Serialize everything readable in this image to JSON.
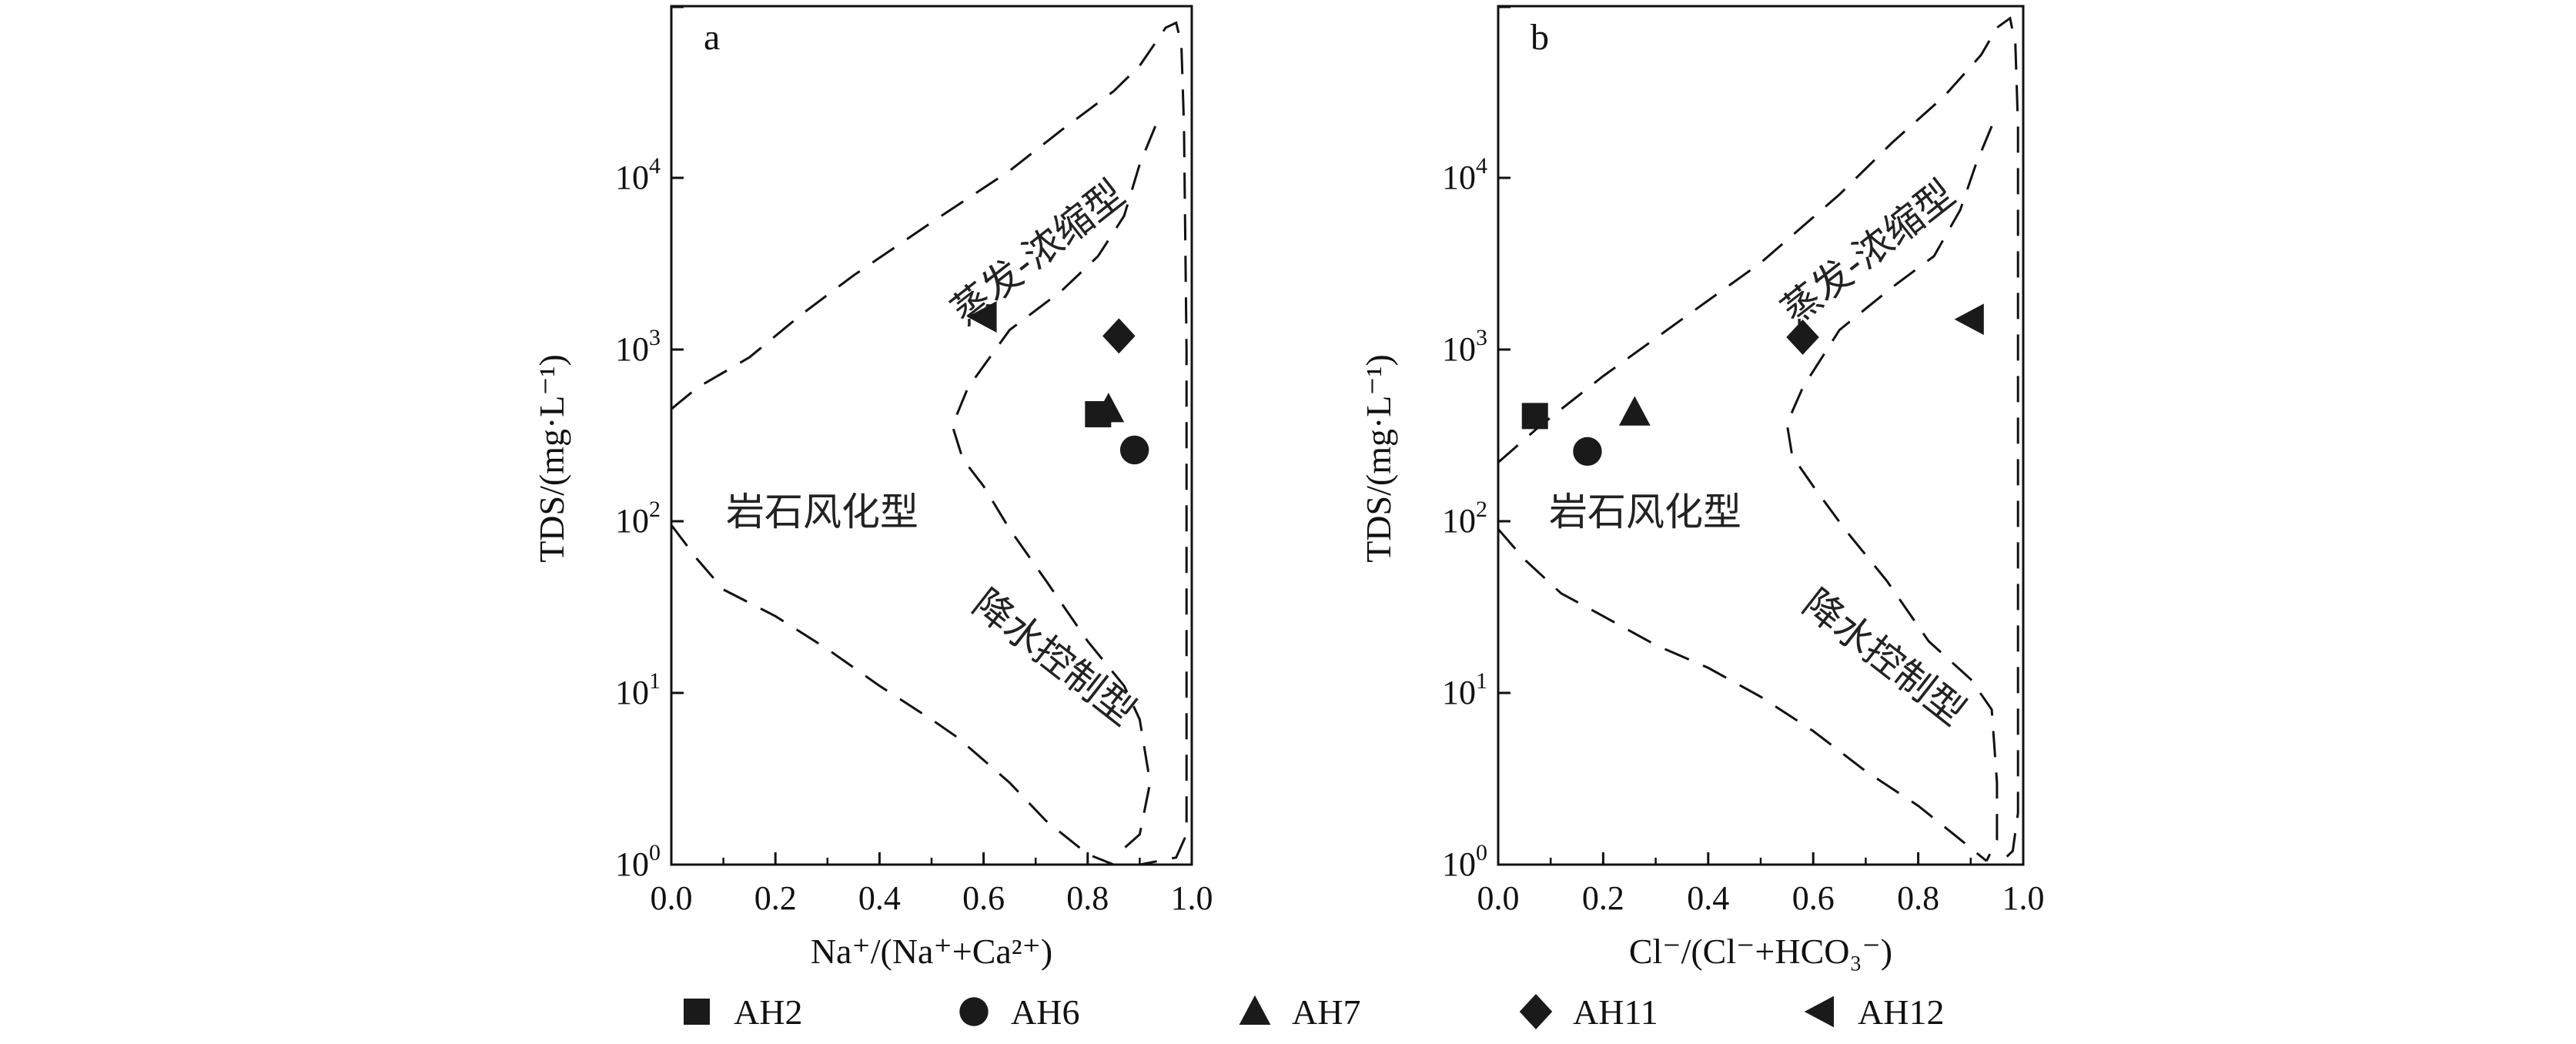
{
  "chart_data": [
    {
      "type": "scatter",
      "panel_label": "a",
      "xlabel": "Na⁺/(Na⁺+Ca²⁺)",
      "ylabel": "TDS/(mg·L⁻¹)",
      "xlim": [
        0.0,
        1.0
      ],
      "ylim": [
        1,
        100000
      ],
      "yscale": "log",
      "x_ticks": [
        "0.0",
        "0.2",
        "0.4",
        "0.6",
        "0.8",
        "1.0"
      ],
      "y_ticks": [
        {
          "base": "10",
          "exp": "0"
        },
        {
          "base": "10",
          "exp": "1"
        },
        {
          "base": "10",
          "exp": "2"
        },
        {
          "base": "10",
          "exp": "3"
        },
        {
          "base": "10",
          "exp": "4"
        }
      ],
      "regions": [
        "蒸发-浓缩型",
        "岩石风化型",
        "降水控制型"
      ],
      "series": [
        {
          "name": "AH2",
          "marker": "square",
          "points": [
            [
              0.82,
              420
            ]
          ]
        },
        {
          "name": "AH6",
          "marker": "circle",
          "points": [
            [
              0.89,
              260
            ]
          ]
        },
        {
          "name": "AH7",
          "marker": "triangle-up",
          "points": [
            [
              0.84,
              450
            ]
          ]
        },
        {
          "name": "AH11",
          "marker": "diamond",
          "points": [
            [
              0.86,
              1200
            ]
          ]
        },
        {
          "name": "AH12",
          "marker": "triangle-left",
          "points": [
            [
              0.6,
              1550
            ]
          ]
        }
      ]
    },
    {
      "type": "scatter",
      "panel_label": "b",
      "xlabel": "Cl⁻/(Cl⁻+HCO₃⁻)",
      "ylabel": "TDS/(mg·L⁻¹)",
      "xlim": [
        0.0,
        1.0
      ],
      "ylim": [
        1,
        100000
      ],
      "yscale": "log",
      "x_ticks": [
        "0.0",
        "0.2",
        "0.4",
        "0.6",
        "0.8",
        "1.0"
      ],
      "y_ticks": [
        {
          "base": "10",
          "exp": "0"
        },
        {
          "base": "10",
          "exp": "1"
        },
        {
          "base": "10",
          "exp": "2"
        },
        {
          "base": "10",
          "exp": "3"
        },
        {
          "base": "10",
          "exp": "4"
        }
      ],
      "regions": [
        "蒸发-浓缩型",
        "岩石风化型",
        "降水控制型"
      ],
      "series": [
        {
          "name": "AH2",
          "marker": "square",
          "points": [
            [
              0.07,
              410
            ]
          ]
        },
        {
          "name": "AH6",
          "marker": "circle",
          "points": [
            [
              0.17,
              255
            ]
          ]
        },
        {
          "name": "AH7",
          "marker": "triangle-up",
          "points": [
            [
              0.26,
              430
            ]
          ]
        },
        {
          "name": "AH11",
          "marker": "diamond",
          "points": [
            [
              0.58,
              1180
            ]
          ]
        },
        {
          "name": "AH12",
          "marker": "triangle-left",
          "points": [
            [
              0.9,
              1500
            ]
          ]
        }
      ]
    }
  ],
  "legend": {
    "placement": "bottom",
    "items": [
      {
        "label": "AH2",
        "marker": "square"
      },
      {
        "label": "AH6",
        "marker": "circle"
      },
      {
        "label": "AH7",
        "marker": "triangle-up"
      },
      {
        "label": "AH11",
        "marker": "diamond"
      },
      {
        "label": "AH12",
        "marker": "triangle-left"
      }
    ]
  },
  "colors": {
    "marker": "#1a1a1a",
    "axis": "#111111",
    "boundary": "#111111"
  }
}
